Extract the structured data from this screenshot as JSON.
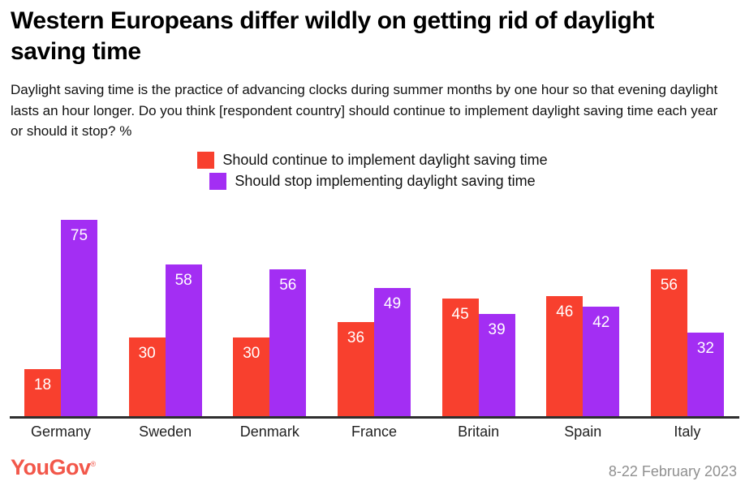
{
  "header": {
    "title": "Western Europeans differ wildly on getting rid of daylight saving time",
    "subtitle": "Daylight saving time is the practice of advancing clocks during summer months by one hour so that evening daylight lasts an hour longer. Do you think [respondent country] should continue to implement daylight saving time each year or should it stop? %"
  },
  "legend": [
    {
      "label": "Should continue to implement daylight saving time",
      "color": "#f8402e"
    },
    {
      "label": "Should stop implementing daylight saving time",
      "color": "#a32ef3"
    }
  ],
  "chart_data": {
    "type": "bar",
    "title": "Western Europeans differ wildly on getting rid of daylight saving time",
    "categories": [
      "Germany",
      "Sweden",
      "Denmark",
      "France",
      "Britain",
      "Spain",
      "Italy"
    ],
    "series": [
      {
        "name": "Should continue to implement daylight saving time",
        "color": "#f8402e",
        "values": [
          18,
          30,
          30,
          36,
          45,
          46,
          56
        ]
      },
      {
        "name": "Should stop implementing daylight saving time",
        "color": "#a32ef3",
        "values": [
          75,
          58,
          56,
          49,
          39,
          42,
          32
        ]
      }
    ],
    "xlabel": "",
    "ylabel": "",
    "ylim": [
      0,
      80
    ],
    "grid": false,
    "value_labels": true,
    "legend_position": "top-center",
    "axis_line_color": "#2e2e2e"
  },
  "footer": {
    "logo": "YouGov",
    "registered_mark": "®",
    "logo_color": "#f2574a",
    "date_range": "8-22 February 2023"
  }
}
